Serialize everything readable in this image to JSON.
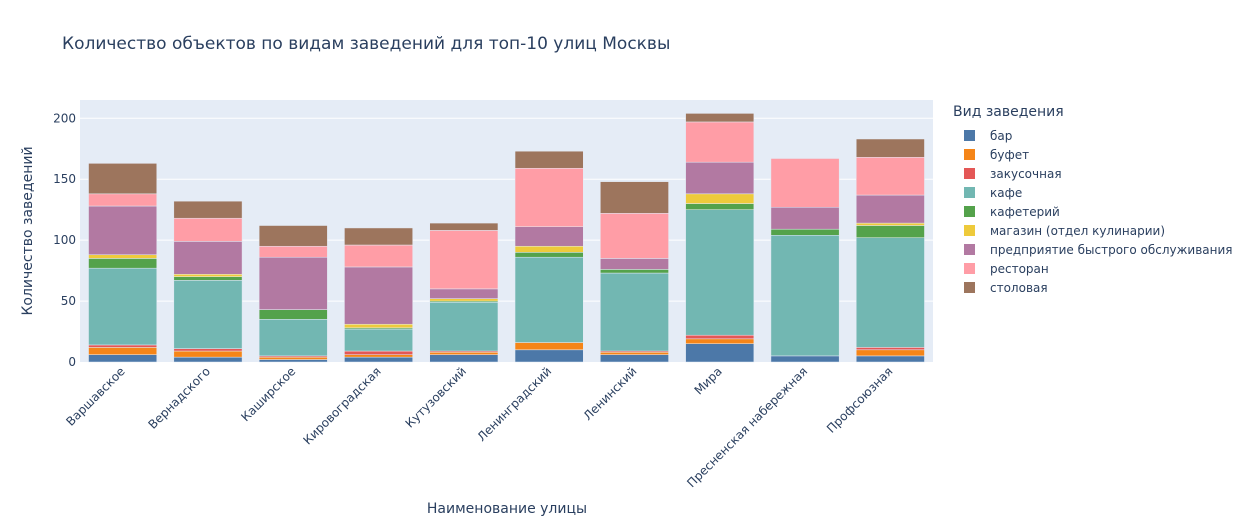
{
  "chart_data": {
    "type": "bar",
    "title": "Количество объектов по видам заведений для топ-10 улиц Москвы",
    "xlabel": "Наименование улицы",
    "ylabel": "Количество заведений",
    "ylim": [
      0,
      215
    ],
    "yticks": [
      0,
      50,
      100,
      150,
      200
    ],
    "legend_title": "Вид заведения",
    "barmode": "stack",
    "grid": true,
    "legend_position": "right",
    "categories": [
      "Варшавское",
      "Вернадского",
      "Каширское",
      "Кировоградская",
      "Кутузовский",
      "Ленинградский",
      "Ленинский",
      "Мира",
      "Пресненская набережная",
      "Профсоюзная"
    ],
    "series": [
      {
        "name": "бар",
        "color": "#4c78a8",
        "values": [
          6,
          4,
          2,
          4,
          6,
          10,
          6,
          15,
          5,
          5
        ]
      },
      {
        "name": "буфет",
        "color": "#f58518",
        "values": [
          6,
          5,
          2,
          2,
          2,
          6,
          2,
          4,
          0,
          5
        ]
      },
      {
        "name": "закусочная",
        "color": "#e45756",
        "values": [
          2,
          2,
          1,
          3,
          1,
          0,
          1,
          3,
          0,
          2
        ]
      },
      {
        "name": "кафе",
        "color": "#72b7b2",
        "values": [
          63,
          56,
          30,
          18,
          40,
          70,
          64,
          103,
          99,
          90
        ]
      },
      {
        "name": "кафетерий",
        "color": "#54a24b",
        "values": [
          8,
          3,
          8,
          1,
          1,
          4,
          3,
          5,
          5,
          10
        ]
      },
      {
        "name": "магазин (отдел кулинарии)",
        "color": "#eeca3b",
        "values": [
          3,
          2,
          0,
          3,
          2,
          5,
          0,
          8,
          0,
          2
        ]
      },
      {
        "name": "предприятие быстрого обслуживания",
        "color": "#b279a2",
        "values": [
          40,
          27,
          43,
          47,
          8,
          16,
          9,
          26,
          18,
          23
        ]
      },
      {
        "name": "ресторан",
        "color": "#ff9da6",
        "values": [
          10,
          19,
          9,
          18,
          48,
          48,
          37,
          33,
          40,
          31
        ]
      },
      {
        "name": "столовая",
        "color": "#9d755d",
        "values": [
          25,
          14,
          17,
          14,
          6,
          14,
          26,
          7,
          0,
          15
        ]
      }
    ]
  }
}
